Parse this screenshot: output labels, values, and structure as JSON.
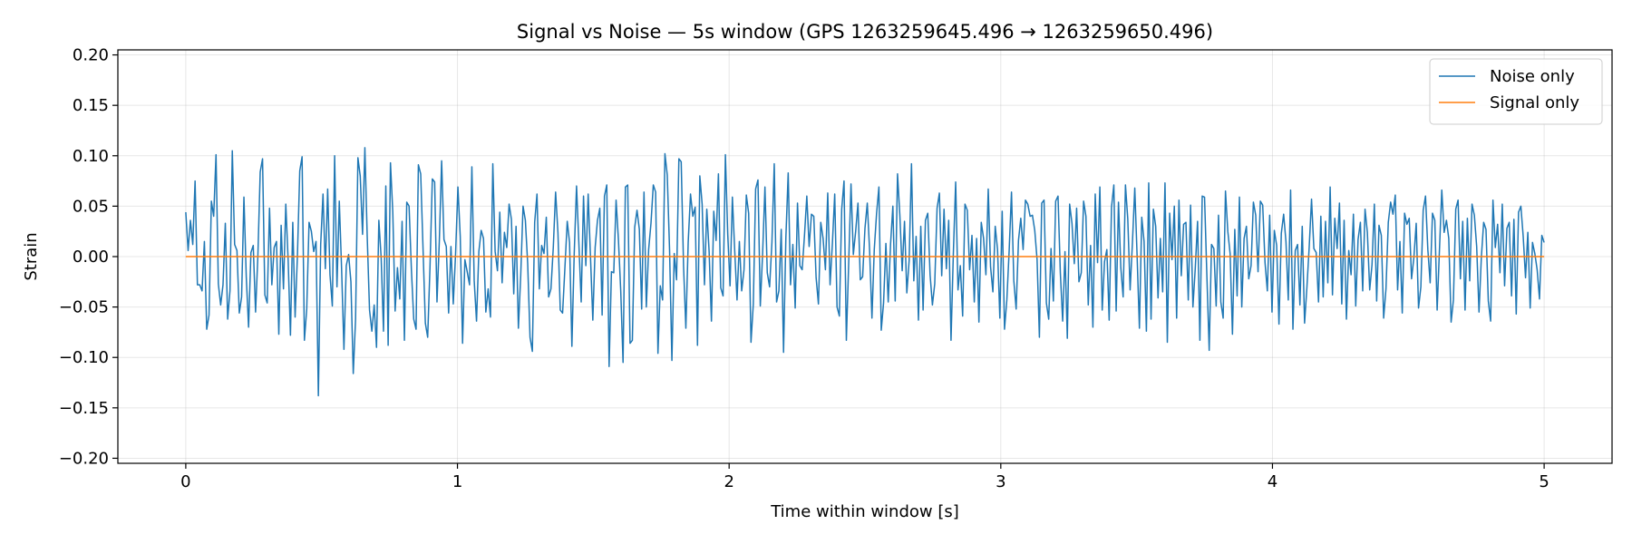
{
  "chart_data": {
    "type": "line",
    "title": "Signal vs Noise — 5s window (GPS 1263259645.496 → 1263259650.496)",
    "xlabel": "Time within window [s]",
    "ylabel": "Strain",
    "xlim": [
      -0.25,
      5.25
    ],
    "ylim": [
      -0.205,
      0.205
    ],
    "xticks": [
      0,
      1,
      2,
      3,
      4,
      5
    ],
    "xtick_labels": [
      "0",
      "1",
      "2",
      "3",
      "4",
      "5"
    ],
    "yticks": [
      -0.2,
      -0.15,
      -0.1,
      -0.05,
      0.0,
      0.05,
      0.1,
      0.15,
      0.2
    ],
    "ytick_labels": [
      "−0.20",
      "−0.15",
      "−0.10",
      "−0.05",
      "0.00",
      "0.05",
      "0.10",
      "0.15",
      "0.20"
    ],
    "grid": true,
    "legend_position": "top-right",
    "series": [
      {
        "name": "Noise only",
        "color": "#1f77b4",
        "x_range": [
          0,
          5
        ],
        "values": [
          0.044,
          0.006,
          0.036,
          0.012,
          0.075,
          -0.028,
          -0.028,
          -0.034,
          0.015,
          -0.072,
          -0.058,
          0.055,
          0.04,
          0.101,
          -0.027,
          -0.048,
          -0.028,
          0.033,
          -0.062,
          -0.034,
          0.105,
          0.012,
          0.006,
          -0.056,
          -0.04,
          0.059,
          -0.02,
          -0.07,
          0.004,
          0.011,
          -0.055,
          0.001,
          0.084,
          0.097,
          -0.038,
          -0.046,
          0.048,
          -0.028,
          0.009,
          0.015,
          -0.077,
          0.031,
          -0.032,
          0.052,
          -0.003,
          -0.078,
          0.034,
          -0.06,
          0.001,
          0.085,
          0.099,
          -0.083,
          -0.052,
          0.034,
          0.025,
          0.005,
          0.015,
          -0.138,
          0.012,
          0.062,
          -0.012,
          0.067,
          -0.018,
          -0.049,
          0.1,
          -0.03,
          0.055,
          -0.013,
          -0.092,
          -0.009,
          0.002,
          -0.025,
          -0.116,
          -0.062,
          0.098,
          0.08,
          0.022,
          0.108,
          0.02,
          -0.053,
          -0.074,
          -0.048,
          -0.09,
          0.036,
          -0.001,
          -0.074,
          0.07,
          -0.088,
          0.093,
          0.044,
          -0.054,
          -0.011,
          -0.042,
          0.035,
          -0.083,
          0.054,
          0.05,
          -0.013,
          -0.062,
          -0.072,
          0.091,
          0.082,
          0.008,
          -0.066,
          -0.08,
          -0.01,
          0.077,
          0.074,
          -0.045,
          0.015,
          0.095,
          0.017,
          0.01,
          -0.056,
          0.01,
          -0.047,
          0.003,
          0.069,
          0.02,
          -0.086,
          -0.003,
          -0.015,
          -0.028,
          0.089,
          -0.024,
          -0.064,
          0.005,
          0.026,
          0.018,
          -0.055,
          -0.032,
          -0.06,
          0.092,
          0.005,
          -0.014,
          0.044,
          -0.026,
          0.024,
          0.009,
          0.052,
          0.037,
          -0.037,
          0.03,
          -0.071,
          -0.019,
          0.05,
          0.036,
          -0.007,
          -0.08,
          -0.094,
          0.034,
          0.062,
          -0.032,
          0.011,
          0.003,
          0.039,
          -0.04,
          -0.032,
          0.009,
          0.064,
          0.024,
          -0.053,
          -0.056,
          -0.011,
          0.035,
          0.014,
          -0.089,
          0.003,
          0.07,
          0.013,
          -0.045,
          0.06,
          -0.009,
          0.062,
          -0.001,
          -0.063,
          0.009,
          0.036,
          0.048,
          -0.058,
          0.06,
          0.071,
          -0.109,
          -0.015,
          -0.016,
          0.056,
          0.017,
          -0.034,
          -0.105,
          0.069,
          0.071,
          -0.086,
          -0.083,
          0.029,
          0.046,
          0.027,
          -0.052,
          0.064,
          -0.05,
          0.007,
          0.033,
          0.071,
          0.064,
          -0.096,
          -0.029,
          -0.043,
          0.102,
          0.081,
          0.006,
          -0.103,
          0.003,
          -0.023,
          0.097,
          0.094,
          -0.009,
          -0.071,
          0.014,
          0.062,
          0.04,
          0.049,
          -0.088,
          0.08,
          0.052,
          -0.028,
          0.047,
          0.005,
          -0.064,
          0.045,
          0.016,
          0.082,
          -0.031,
          -0.039,
          0.101,
          0.022,
          -0.029,
          0.059,
          0.006,
          -0.043,
          0.015,
          -0.034,
          -0.013,
          0.061,
          0.043,
          -0.085,
          -0.047,
          0.067,
          0.076,
          -0.049,
          0.003,
          0.069,
          -0.016,
          -0.03,
          0.014,
          0.092,
          -0.045,
          -0.034,
          0.027,
          -0.095,
          0.019,
          0.083,
          -0.028,
          0.012,
          -0.051,
          0.053,
          -0.009,
          -0.013,
          0.021,
          0.06,
          0.01,
          0.042,
          0.04,
          -0.021,
          -0.047,
          0.034,
          0.018,
          -0.013,
          0.063,
          -0.028,
          0.013,
          0.062,
          -0.05,
          -0.059,
          0.047,
          0.075,
          -0.083,
          -0.007,
          0.072,
          0.002,
          0.025,
          0.053,
          -0.023,
          -0.02,
          0.028,
          0.053,
          0.006,
          -0.061,
          0.007,
          0.043,
          0.069,
          -0.073,
          -0.046,
          0.013,
          -0.045,
          0.012,
          0.05,
          -0.044,
          0.082,
          0.041,
          -0.014,
          0.035,
          -0.036,
          -0.004,
          0.092,
          -0.024,
          0.02,
          -0.063,
          0.03,
          -0.053,
          0.036,
          0.043,
          -0.018,
          -0.048,
          -0.027,
          0.048,
          0.063,
          -0.019,
          0.047,
          -0.012,
          0.036,
          -0.083,
          0.003,
          0.074,
          -0.033,
          -0.009,
          -0.059,
          0.052,
          0.046,
          -0.013,
          0.021,
          -0.045,
          0.018,
          -0.065,
          0.034,
          0.018,
          -0.018,
          0.067,
          -0.01,
          -0.035,
          0.03,
          0.007,
          -0.061,
          0.045,
          -0.072,
          -0.043,
          0.006,
          0.064,
          -0.024,
          -0.052,
          0.016,
          0.038,
          0.007,
          0.056,
          0.052,
          0.04,
          0.041,
          0.026,
          -0.003,
          -0.08,
          0.053,
          0.056,
          -0.046,
          -0.062,
          0.008,
          -0.044,
          0.055,
          0.06,
          -0.016,
          -0.064,
          0.005,
          -0.081,
          0.052,
          0.033,
          -0.007,
          0.048,
          -0.025,
          -0.016,
          0.055,
          0.04,
          -0.048,
          0.011,
          -0.07,
          0.062,
          -0.006,
          0.069,
          -0.053,
          -0.005,
          0.007,
          -0.063,
          0.049,
          0.071,
          -0.054,
          0.054,
          -0.011,
          -0.04,
          0.071,
          0.037,
          -0.033,
          0.014,
          0.068,
          0.001,
          -0.071,
          0.039,
          0.015,
          -0.074,
          0.073,
          -0.062,
          0.047,
          0.03,
          -0.041,
          0.018,
          -0.035,
          0.073,
          -0.085,
          0.043,
          -0.003,
          0.05,
          -0.061,
          0.056,
          -0.019,
          0.032,
          0.034,
          -0.043,
          0.051,
          -0.05,
          -0.012,
          0.035,
          -0.083,
          0.06,
          0.059,
          -0.019,
          -0.093,
          0.012,
          0.008,
          -0.049,
          0.041,
          -0.045,
          -0.061,
          0.065,
          0.025,
          0.003,
          -0.077,
          0.027,
          -0.039,
          0.059,
          -0.05,
          0.018,
          0.03,
          -0.022,
          -0.009,
          0.054,
          0.041,
          -0.015,
          0.055,
          0.051,
          -0.006,
          -0.034,
          0.041,
          -0.055,
          0.026,
          0.011,
          -0.067,
          0.023,
          0.042,
          0.015,
          -0.043,
          0.066,
          -0.072,
          0.006,
          0.012,
          -0.048,
          0.03,
          -0.066,
          -0.031,
          0.01,
          0.057,
          0.008,
          0.004,
          -0.045,
          0.04,
          -0.04,
          0.035,
          -0.026,
          0.069,
          -0.038,
          0.038,
          0.008,
          0.053,
          -0.047,
          0.036,
          -0.062,
          0.006,
          -0.018,
          0.042,
          -0.049,
          0.017,
          0.034,
          -0.034,
          0.047,
          0.024,
          -0.033,
          -0.008,
          0.052,
          -0.044,
          0.031,
          0.021,
          -0.061,
          -0.032,
          0.034,
          0.054,
          0.042,
          0.061,
          -0.033,
          0.015,
          -0.056,
          0.043,
          0.032,
          0.038,
          -0.022,
          -0.001,
          0.033,
          -0.051,
          -0.03,
          0.046,
          0.06,
          0.007,
          -0.026,
          0.043,
          0.036,
          -0.053,
          0.007,
          0.066,
          0.024,
          0.036,
          0.018,
          -0.065,
          -0.043,
          0.047,
          0.056,
          -0.022,
          0.035,
          -0.053,
          0.038,
          -0.024,
          0.052,
          0.041,
          0.01,
          -0.055,
          -0.001,
          0.034,
          0.027,
          -0.044,
          -0.064,
          0.056,
          0.009,
          0.032,
          -0.016,
          0.052,
          -0.029,
          0.028,
          0.034,
          -0.039,
          0.037,
          -0.057,
          0.044,
          0.05,
          0.02,
          -0.021,
          0.024,
          -0.051,
          0.014,
          0.003,
          -0.013,
          -0.042,
          0.021,
          0.014
        ]
      },
      {
        "name": "Signal only",
        "color": "#ff7f0e",
        "x_range": [
          0,
          5
        ],
        "values": [
          0.0,
          0.0
        ]
      }
    ]
  }
}
